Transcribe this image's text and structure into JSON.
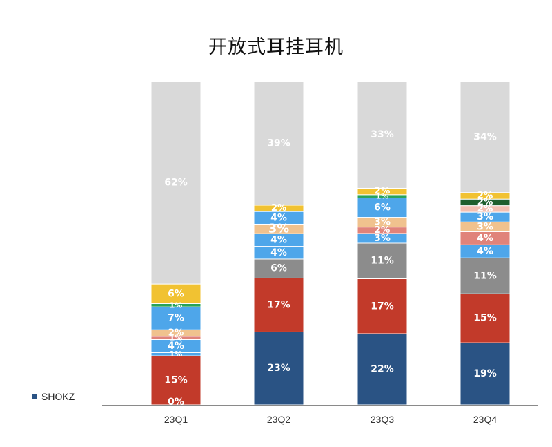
{
  "chart_data": {
    "type": "bar",
    "stacked": true,
    "percent_stacked": true,
    "title": "开放式耳挂耳机",
    "categories": [
      "23Q1",
      "23Q2",
      "23Q3",
      "23Q4"
    ],
    "legend": {
      "placement": "bottom-left",
      "entries": [
        {
          "name": "SHOKZ",
          "color": "#2a5384"
        }
      ]
    },
    "grid": false,
    "series": [
      {
        "color": "#2a5384",
        "values": [
          0,
          23,
          22,
          19
        ],
        "labels": [
          "0%",
          "23%",
          "22%",
          "19%"
        ]
      },
      {
        "color": "#c23a2a",
        "values": [
          15,
          17,
          17,
          15
        ],
        "labels": [
          "15%",
          "17%",
          "17%",
          "15%"
        ]
      },
      {
        "color": "#8c8c8c",
        "values": [
          0,
          6,
          11,
          11
        ],
        "labels": [
          "",
          "6%",
          "11%",
          "11%"
        ]
      },
      {
        "color": "#4ea6ea",
        "values": [
          1,
          4,
          3,
          4
        ],
        "labels": [
          "1%",
          "4%",
          "3%",
          "4%"
        ]
      },
      {
        "color": "#4ea6ea",
        "values": [
          4,
          4,
          0,
          0
        ],
        "labels": [
          "4%",
          "4%",
          "",
          ""
        ]
      },
      {
        "color": "#e0837a",
        "values": [
          1,
          0,
          2,
          4
        ],
        "labels": [
          "1%",
          "",
          "2%",
          "4%"
        ]
      },
      {
        "color": "#f0c28e",
        "values": [
          2,
          3,
          3,
          3
        ],
        "labels": [
          "2%",
          "3%",
          "3%",
          "3%"
        ]
      },
      {
        "color": "#4ea6ea",
        "values": [
          7,
          4,
          6,
          3
        ],
        "labels": [
          "7%",
          "4%",
          "6%",
          "3%"
        ]
      },
      {
        "color": "#f3c0b2",
        "values": [
          0,
          0,
          0,
          2
        ],
        "labels": [
          "",
          "",
          "",
          "2%"
        ]
      },
      {
        "color": "#1f5f2e",
        "values": [
          0,
          0,
          0,
          2
        ],
        "labels": [
          "",
          "",
          "",
          "2%"
        ]
      },
      {
        "color": "#27a35a",
        "values": [
          1,
          0,
          1,
          0
        ],
        "labels": [
          "1%",
          "",
          "1%",
          ""
        ]
      },
      {
        "color": "#f1c232",
        "values": [
          6,
          2,
          2,
          2
        ],
        "labels": [
          "6%",
          "2%",
          "2%",
          "2%"
        ]
      },
      {
        "color": "#d9d9d9",
        "values": [
          62,
          39,
          33,
          34
        ],
        "labels": [
          "62%",
          "39%",
          "33%",
          "34%"
        ]
      }
    ]
  }
}
